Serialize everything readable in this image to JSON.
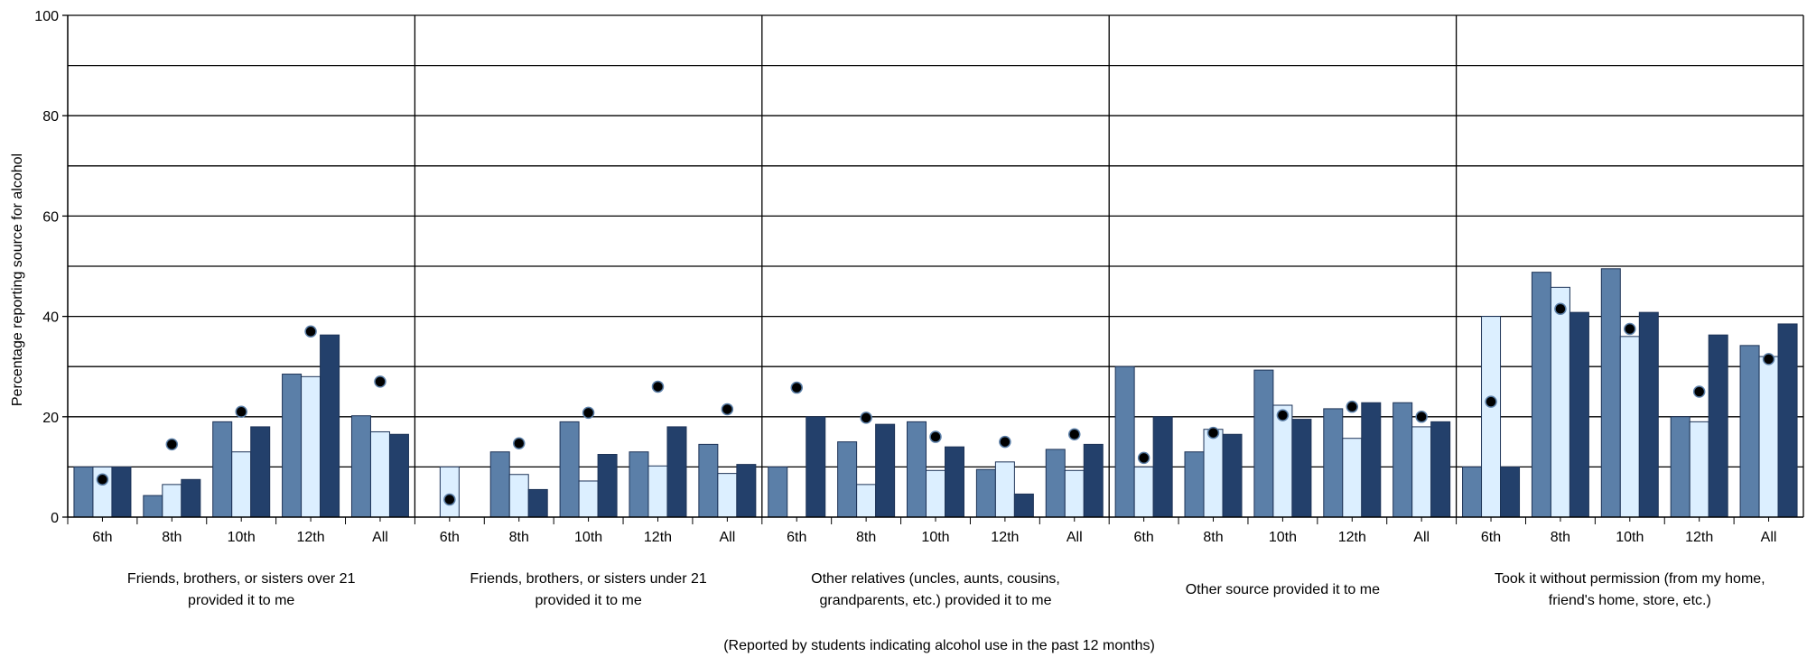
{
  "chart_data": {
    "type": "bar",
    "title": "",
    "xlabel": "(Reported by students indicating alcohol use in the past 12 months)",
    "ylabel": "Percentage reporting source for alcohol",
    "ylim": [
      0,
      100
    ],
    "yticks": [
      0,
      20,
      40,
      60,
      80,
      100
    ],
    "grid_lines": [
      10,
      20,
      30,
      40,
      50,
      60,
      70,
      80,
      90,
      100
    ],
    "legend": "none",
    "colors": {
      "series_a": "#5b7fa8",
      "series_b": "#dcefff",
      "series_c": "#23406b",
      "point": "#000000"
    },
    "groups": [
      {
        "label_lines": [
          "Friends, brothers, or sisters over 21",
          "provided it to me"
        ],
        "categories": [
          "6th",
          "8th",
          "10th",
          "12th",
          "All"
        ],
        "series_a": [
          10,
          4.3,
          19,
          28.5,
          20.2
        ],
        "series_b": [
          10,
          6.5,
          13,
          28,
          17
        ],
        "series_c": [
          10,
          7.5,
          18,
          36.3,
          16.5
        ],
        "points": [
          7.5,
          14.5,
          21,
          37,
          27
        ]
      },
      {
        "label_lines": [
          "Friends, brothers, or sisters under 21",
          "provided it to me"
        ],
        "categories": [
          "6th",
          "8th",
          "10th",
          "12th",
          "All"
        ],
        "series_a": [
          0,
          13,
          19,
          13,
          14.5
        ],
        "series_b": [
          10,
          8.5,
          7.2,
          10.2,
          8.7
        ],
        "series_c": [
          0,
          5.5,
          12.5,
          18,
          10.5
        ],
        "points": [
          3.5,
          14.7,
          20.8,
          26,
          21.5
        ]
      },
      {
        "label_lines": [
          "Other relatives (uncles, aunts, cousins,",
          "grandparents, etc.) provided it to me"
        ],
        "categories": [
          "6th",
          "8th",
          "10th",
          "12th",
          "All"
        ],
        "series_a": [
          10,
          15,
          19,
          9.5,
          13.5
        ],
        "series_b": [
          0,
          6.5,
          9.3,
          11,
          9.3
        ],
        "series_c": [
          20,
          18.5,
          14,
          4.6,
          14.5
        ],
        "points": [
          25.8,
          19.8,
          16,
          15,
          16.5
        ]
      },
      {
        "label_lines": [
          "Other source provided it to me"
        ],
        "categories": [
          "6th",
          "8th",
          "10th",
          "12th",
          "All"
        ],
        "series_a": [
          30,
          13,
          29.3,
          21.6,
          22.8
        ],
        "series_b": [
          10,
          17.5,
          22.3,
          15.7,
          18
        ],
        "series_c": [
          20,
          16.5,
          19.5,
          22.8,
          19
        ],
        "points": [
          11.8,
          16.8,
          20.3,
          22,
          20
        ]
      },
      {
        "label_lines": [
          "Took it without permission (from my home,",
          "friend's home, store, etc.)"
        ],
        "categories": [
          "6th",
          "8th",
          "10th",
          "12th",
          "All"
        ],
        "series_a": [
          10,
          48.8,
          49.5,
          20,
          34.2
        ],
        "series_b": [
          40,
          45.8,
          36,
          19,
          32
        ],
        "series_c": [
          10,
          40.8,
          40.8,
          36.3,
          38.5
        ],
        "points": [
          23,
          41.5,
          37.5,
          25,
          31.5
        ]
      }
    ]
  }
}
